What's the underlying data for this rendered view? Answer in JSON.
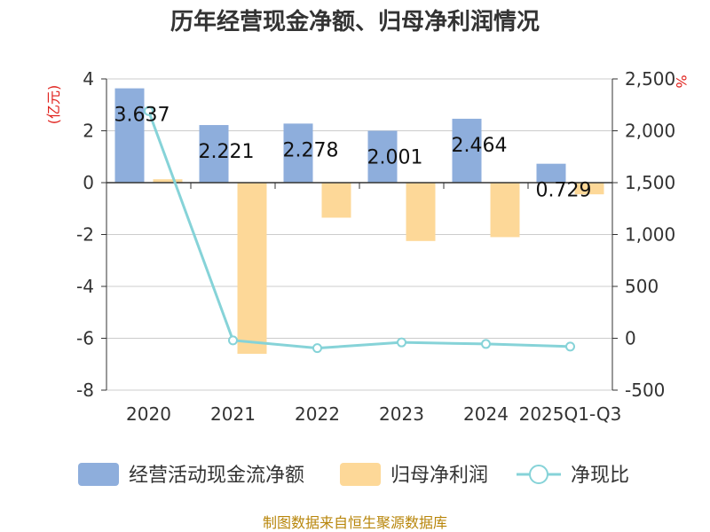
{
  "chart_data": {
    "type": "bar",
    "title": "历年经营现金净额、归母净利润情况",
    "categories": [
      "2020",
      "2021",
      "2022",
      "2023",
      "2024",
      "2025Q1-Q3"
    ],
    "series": [
      {
        "name": "经营活动现金流净额",
        "kind": "bar",
        "axis": "left",
        "color": "#8eaedc",
        "values": [
          3.637,
          2.221,
          2.278,
          2.001,
          2.464,
          0.729
        ]
      },
      {
        "name": "归母净利润",
        "kind": "bar",
        "axis": "left",
        "color": "#fdd898",
        "values": [
          0.13,
          -6.6,
          -1.35,
          -2.25,
          -2.1,
          -0.45
        ]
      },
      {
        "name": "净现比",
        "kind": "line",
        "axis": "right",
        "color": "#86d3d8",
        "values": [
          2190,
          -20,
          -95,
          -40,
          -55,
          -80
        ]
      }
    ],
    "data_labels": [
      "3.637",
      "2.221",
      "2.278",
      "2.001",
      "2.464",
      "0.729"
    ],
    "left_axis": {
      "unit_label": "(亿元)",
      "ylim": [
        -8,
        4
      ],
      "ticks": [
        4,
        2,
        0,
        -2,
        -4,
        -6,
        -8
      ],
      "tick_labels": [
        "4",
        "2",
        "0",
        "-2",
        "-4",
        "-6",
        "-8"
      ]
    },
    "right_axis": {
      "unit_label": "%",
      "ylim": [
        -500,
        2500
      ],
      "ticks": [
        2500,
        2000,
        1500,
        1000,
        500,
        0,
        -500
      ],
      "tick_labels": [
        "2,500",
        "2,000",
        "1,500",
        "1,000",
        "500",
        "0",
        "-500"
      ]
    },
    "legend": {
      "position": "bottom",
      "items": [
        "经营活动现金流净额",
        "归母净利润",
        "净现比"
      ]
    },
    "grid": true,
    "source": "制图数据来自恒生聚源数据库"
  }
}
